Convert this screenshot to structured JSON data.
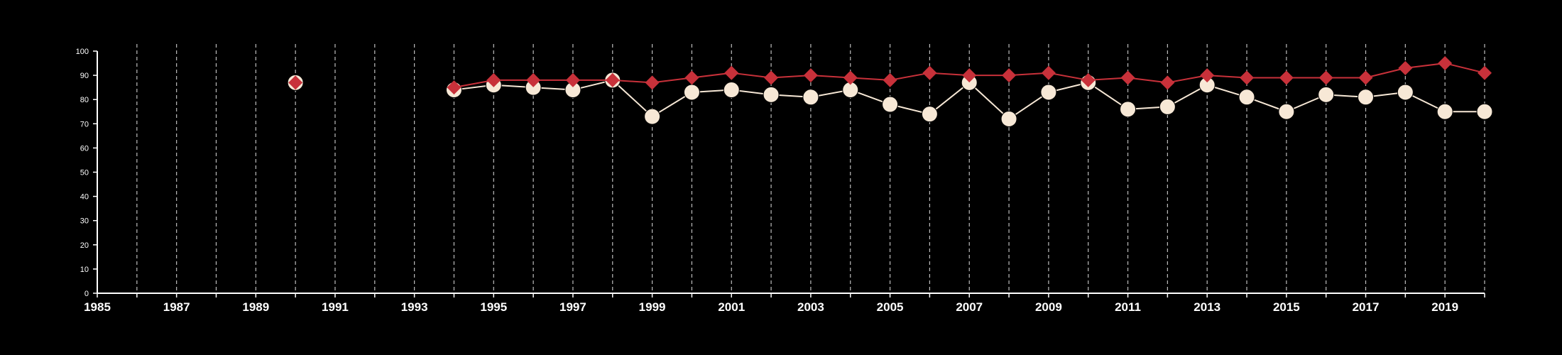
{
  "chart_data": {
    "type": "line",
    "background": "#000000",
    "xlim": [
      1985,
      2020
    ],
    "ylim": [
      0,
      100
    ],
    "x_ticks": [
      1985,
      1987,
      1989,
      1991,
      1993,
      1995,
      1997,
      1999,
      2001,
      2003,
      2005,
      2007,
      2009,
      2011,
      2013,
      2015,
      2017,
      2019
    ],
    "y_ticks": [
      0,
      10,
      20,
      30,
      40,
      50,
      60,
      70,
      80,
      90,
      100
    ],
    "vertical_gridlines_years": [
      1986,
      1987,
      1988,
      1989,
      1990,
      1991,
      1992,
      1993,
      1994,
      1995,
      1996,
      1997,
      1998,
      1999,
      2000,
      2001,
      2002,
      2003,
      2004,
      2005,
      2006,
      2007,
      2008,
      2009,
      2010,
      2011,
      2012,
      2013,
      2014,
      2015,
      2016,
      2017,
      2018,
      2019,
      2020
    ],
    "grid": "vertical dashed",
    "series": [
      {
        "marker": "circle",
        "color": "#f7e8d6",
        "points": [
          {
            "x": 1990,
            "y": 87
          },
          {
            "x": 1994,
            "y": 84
          },
          {
            "x": 1995,
            "y": 86
          },
          {
            "x": 1996,
            "y": 85
          },
          {
            "x": 1997,
            "y": 84
          },
          {
            "x": 1998,
            "y": 88
          },
          {
            "x": 1999,
            "y": 73
          },
          {
            "x": 2000,
            "y": 83
          },
          {
            "x": 2001,
            "y": 84
          },
          {
            "x": 2002,
            "y": 82
          },
          {
            "x": 2003,
            "y": 81
          },
          {
            "x": 2004,
            "y": 84
          },
          {
            "x": 2005,
            "y": 78
          },
          {
            "x": 2006,
            "y": 74
          },
          {
            "x": 2007,
            "y": 87
          },
          {
            "x": 2008,
            "y": 72
          },
          {
            "x": 2009,
            "y": 83
          },
          {
            "x": 2010,
            "y": 87
          },
          {
            "x": 2011,
            "y": 76
          },
          {
            "x": 2012,
            "y": 77
          },
          {
            "x": 2013,
            "y": 86
          },
          {
            "x": 2014,
            "y": 81
          },
          {
            "x": 2015,
            "y": 75
          },
          {
            "x": 2016,
            "y": 82
          },
          {
            "x": 2017,
            "y": 81
          },
          {
            "x": 2018,
            "y": 83
          },
          {
            "x": 2019,
            "y": 75
          },
          {
            "x": 2020,
            "y": 75
          }
        ]
      },
      {
        "marker": "diamond",
        "color": "#c8313a",
        "points": [
          {
            "x": 1990,
            "y": 87
          },
          {
            "x": 1994,
            "y": 85
          },
          {
            "x": 1995,
            "y": 88
          },
          {
            "x": 1996,
            "y": 88
          },
          {
            "x": 1997,
            "y": 88
          },
          {
            "x": 1998,
            "y": 88
          },
          {
            "x": 1999,
            "y": 87
          },
          {
            "x": 2000,
            "y": 89
          },
          {
            "x": 2001,
            "y": 91
          },
          {
            "x": 2002,
            "y": 89
          },
          {
            "x": 2003,
            "y": 90
          },
          {
            "x": 2004,
            "y": 89
          },
          {
            "x": 2005,
            "y": 88
          },
          {
            "x": 2006,
            "y": 91
          },
          {
            "x": 2007,
            "y": 90
          },
          {
            "x": 2008,
            "y": 90
          },
          {
            "x": 2009,
            "y": 91
          },
          {
            "x": 2010,
            "y": 88
          },
          {
            "x": 2011,
            "y": 89
          },
          {
            "x": 2012,
            "y": 87
          },
          {
            "x": 2013,
            "y": 90
          },
          {
            "x": 2014,
            "y": 89
          },
          {
            "x": 2015,
            "y": 89
          },
          {
            "x": 2016,
            "y": 89
          },
          {
            "x": 2017,
            "y": 89
          },
          {
            "x": 2018,
            "y": 93
          },
          {
            "x": 2019,
            "y": 95
          },
          {
            "x": 2020,
            "y": 91
          }
        ]
      }
    ]
  }
}
